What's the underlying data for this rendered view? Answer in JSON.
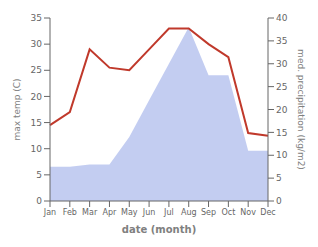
{
  "chart_data": {
    "type": "line",
    "categories": [
      "Jan",
      "Feb",
      "Mar",
      "Apr",
      "May",
      "Jun",
      "Jul",
      "Aug",
      "Sep",
      "Oct",
      "Nov",
      "Dec"
    ],
    "xlabel": "date (month)",
    "ylabel": "max temp (C)",
    "y2label": "med. precipitation (kg/m2)",
    "ylim": [
      0,
      35
    ],
    "yticks": [
      0,
      5,
      10,
      15,
      20,
      25,
      30,
      35
    ],
    "y2lim": [
      0,
      40
    ],
    "y2ticks": [
      0,
      5,
      10,
      15,
      20,
      25,
      30,
      35,
      40
    ],
    "grid": false,
    "series": [
      {
        "type": "area",
        "color": "#b8c4ee",
        "axis": "y2",
        "values": [
          7.5,
          7.5,
          8.0,
          8.0,
          14.0,
          22.0,
          30.0,
          38.0,
          27.5,
          27.5,
          11.0,
          11.0
        ]
      },
      {
        "type": "line",
        "color": "#c0392b",
        "values": [
          14.5,
          17.0,
          29.0,
          25.5,
          25.0,
          29.0,
          33.0,
          33.0,
          30.0,
          27.5,
          13.0,
          12.5
        ]
      }
    ]
  }
}
